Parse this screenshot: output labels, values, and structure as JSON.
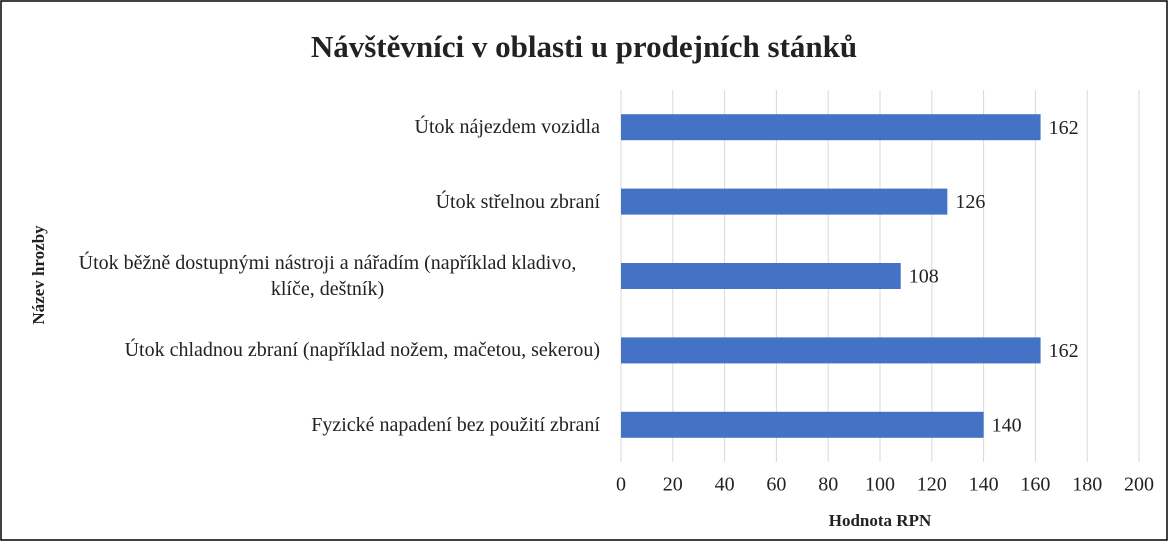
{
  "chart_data": {
    "type": "bar",
    "orientation": "horizontal",
    "title": "Návštěvníci v oblasti u prodejních stánků",
    "x_label": "Hodnota RPN",
    "y_label": "Název hrozby",
    "categories": [
      "Útok nájezdem vozidla",
      "Útok střelnou zbraní",
      "Útok běžně dostupnými nástroji a nářadím (například kladivo, klíče, deštník)",
      "Útok chladnou zbraní (například nožem, mačetou, sekerou)",
      "Fyzické napadení bez použití zbraní"
    ],
    "values": [
      162,
      126,
      108,
      162,
      140
    ],
    "color": "#4472c4",
    "xlim": [
      0,
      200
    ],
    "xticks": [
      0,
      20,
      40,
      60,
      80,
      100,
      120,
      140,
      160,
      180,
      200
    ],
    "grid": true
  }
}
